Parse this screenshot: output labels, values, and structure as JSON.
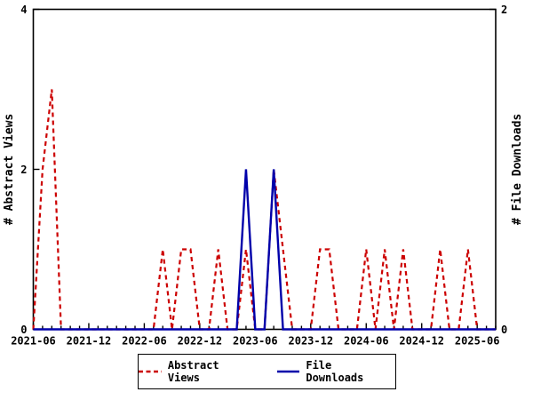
{
  "chart_data": {
    "type": "line",
    "title": "",
    "background": "#ffffff",
    "grid": false,
    "legend_position": "bottom-center",
    "x": [
      "2021-06",
      "2021-07",
      "2021-08",
      "2021-09",
      "2021-10",
      "2021-11",
      "2021-12",
      "2022-01",
      "2022-02",
      "2022-03",
      "2022-04",
      "2022-05",
      "2022-06",
      "2022-07",
      "2022-08",
      "2022-09",
      "2022-10",
      "2022-11",
      "2022-12",
      "2023-01",
      "2023-02",
      "2023-03",
      "2023-04",
      "2023-05",
      "2023-06",
      "2023-07",
      "2023-08",
      "2023-09",
      "2023-10",
      "2023-11",
      "2023-12",
      "2024-01",
      "2024-02",
      "2024-03",
      "2024-04",
      "2024-05",
      "2024-06",
      "2024-07",
      "2024-08",
      "2024-09",
      "2024-10",
      "2024-11",
      "2024-12",
      "2025-01",
      "2025-02",
      "2025-03",
      "2025-04",
      "2025-05",
      "2025-06",
      "2025-07",
      "2025-08"
    ],
    "series": [
      {
        "name": "Abstract Views",
        "axis": "left",
        "color": "#cc0000",
        "style": "dashed",
        "values": [
          0,
          2,
          3,
          0,
          0,
          0,
          0,
          0,
          0,
          0,
          0,
          0,
          0,
          0,
          1,
          0,
          1,
          1,
          0,
          0,
          1,
          0,
          0,
          1,
          0,
          0,
          2,
          1,
          0,
          0,
          0,
          1,
          1,
          0,
          0,
          0,
          1,
          0,
          1,
          0,
          1,
          0,
          0,
          0,
          1,
          0,
          0,
          1,
          0,
          0,
          0
        ]
      },
      {
        "name": "File Downloads",
        "axis": "right",
        "color": "#0000aa",
        "style": "solid",
        "values": [
          0,
          0,
          0,
          0,
          0,
          0,
          0,
          0,
          0,
          0,
          0,
          0,
          0,
          0,
          0,
          0,
          0,
          0,
          0,
          0,
          0,
          0,
          0,
          1,
          0,
          0,
          1,
          0,
          0,
          0,
          0,
          0,
          0,
          0,
          0,
          0,
          0,
          0,
          0,
          0,
          0,
          0,
          0,
          0,
          0,
          0,
          0,
          0,
          0,
          0,
          0
        ]
      }
    ],
    "left_axis": {
      "label": "# Abstract Views",
      "range": [
        0,
        4
      ],
      "ticks": [
        0,
        2,
        4
      ]
    },
    "right_axis": {
      "label": "# File Downloads",
      "range": [
        0,
        2
      ],
      "ticks": [
        0,
        2
      ]
    },
    "x_axis": {
      "minor_tick_every_months": 1,
      "major_tick_every_months": 6,
      "major_labels": [
        "2021-06",
        "2021-12",
        "2022-06",
        "2022-12",
        "2023-06",
        "2023-12",
        "2024-06",
        "2024-12",
        "2025-06"
      ]
    }
  }
}
